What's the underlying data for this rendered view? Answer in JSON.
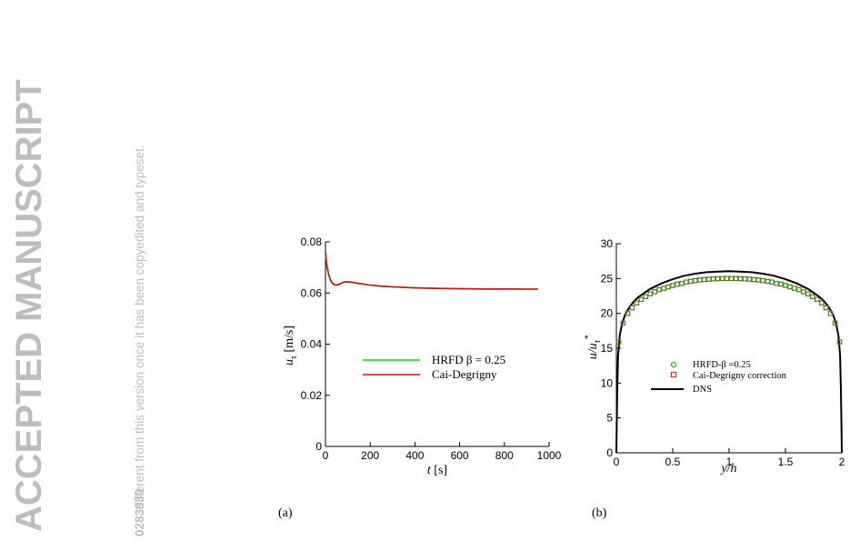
{
  "watermark": {
    "main": "ACCEPTED MANUSCRIPT",
    "line1": "different from this version once it has been copyedited and typeset.",
    "line2": "0283930"
  },
  "chart_data": [
    {
      "type": "line",
      "panel_label": "(a)",
      "xlabel": "t [s]",
      "ylabel": "u_τ [m/s]",
      "ylabel_main": "u",
      "ylabel_sub": "τ",
      "ylabel_unit": "[m/s]",
      "xlabel_var": "t",
      "xlabel_unit": "[s]",
      "xlim": [
        0,
        1000
      ],
      "ylim": [
        0,
        0.08
      ],
      "xticks": [
        0,
        200,
        400,
        600,
        800,
        1000
      ],
      "yticks": [
        0,
        0.02,
        0.04,
        0.06,
        0.08
      ],
      "xtick_labels": [
        "0",
        "200",
        "400",
        "600",
        "800",
        "1000"
      ],
      "ytick_labels": [
        "0",
        "0.02",
        "0.04",
        "0.06",
        "0.08"
      ],
      "legend_position": "center",
      "series": [
        {
          "name": "HRFD β = 0.25",
          "color": "#00dd00",
          "x": [
            0,
            5,
            10,
            20,
            30,
            40,
            50,
            60,
            70,
            80,
            90,
            100,
            120,
            150,
            200,
            250,
            300,
            400,
            500,
            600,
            700,
            800,
            900,
            950
          ],
          "y": [
            0.0755,
            0.0715,
            0.0685,
            0.0655,
            0.0638,
            0.0632,
            0.0631,
            0.0633,
            0.0637,
            0.0641,
            0.0643,
            0.0643,
            0.0641,
            0.0637,
            0.0631,
            0.0627,
            0.0624,
            0.062,
            0.0618,
            0.0617,
            0.0616,
            0.0616,
            0.0615,
            0.0615
          ]
        },
        {
          "name": "Cai-Degrigny",
          "color": "#cc1111",
          "x": [
            0,
            5,
            10,
            20,
            30,
            40,
            50,
            60,
            70,
            80,
            90,
            100,
            120,
            150,
            200,
            250,
            300,
            400,
            500,
            600,
            700,
            800,
            900,
            950
          ],
          "y": [
            0.076,
            0.0718,
            0.0688,
            0.0657,
            0.0639,
            0.0633,
            0.0632,
            0.0634,
            0.0638,
            0.0642,
            0.0644,
            0.0644,
            0.0642,
            0.0637,
            0.0631,
            0.0627,
            0.0624,
            0.062,
            0.0618,
            0.0617,
            0.0616,
            0.0616,
            0.0615,
            0.0615
          ]
        }
      ]
    },
    {
      "type": "line",
      "panel_label": "(b)",
      "xlabel": "y/h",
      "ylabel": "u/u_τ^*",
      "ylabel_main": "u/u",
      "ylabel_sub": "τ",
      "ylabel_sup": "*",
      "xlim": [
        0,
        2
      ],
      "ylim": [
        0,
        30
      ],
      "xticks": [
        0,
        0.5,
        1,
        1.5,
        2
      ],
      "yticks": [
        0,
        5,
        10,
        15,
        20,
        25,
        30
      ],
      "xtick_labels": [
        "0",
        "0.5",
        "1",
        "1.5",
        "2"
      ],
      "ytick_labels": [
        "0",
        "5",
        "10",
        "15",
        "20",
        "25",
        "30"
      ],
      "legend_position": "center",
      "series": [
        {
          "name": "HRFD-β =0.25",
          "marker": "circle",
          "color": "#22aa22",
          "x": [
            0.02,
            0.06,
            0.1,
            0.14,
            0.18,
            0.22,
            0.26,
            0.3,
            0.34,
            0.38,
            0.42,
            0.46,
            0.5,
            0.54,
            0.58,
            0.62,
            0.66,
            0.7,
            0.74,
            0.78,
            0.82,
            0.86,
            0.9,
            0.94,
            0.98,
            1.02,
            1.06,
            1.1,
            1.14,
            1.18,
            1.22,
            1.26,
            1.3,
            1.34,
            1.38,
            1.42,
            1.46,
            1.5,
            1.54,
            1.58,
            1.62,
            1.66,
            1.7,
            1.74,
            1.78,
            1.82,
            1.86,
            1.9,
            1.94,
            1.98
          ],
          "y": [
            15.9,
            18.6,
            20.0,
            20.8,
            21.5,
            22.0,
            22.4,
            22.8,
            23.1,
            23.4,
            23.6,
            23.8,
            24.0,
            24.2,
            24.3,
            24.5,
            24.6,
            24.7,
            24.8,
            24.85,
            24.9,
            24.95,
            24.98,
            25.0,
            25.0,
            25.0,
            25.0,
            24.98,
            24.95,
            24.9,
            24.85,
            24.8,
            24.7,
            24.6,
            24.5,
            24.3,
            24.2,
            24.0,
            23.8,
            23.6,
            23.4,
            23.1,
            22.8,
            22.4,
            22.0,
            21.5,
            20.8,
            20.0,
            18.6,
            15.9
          ]
        },
        {
          "name": "Cai-Degrigny correction",
          "marker": "square",
          "color": "#cc2222",
          "x": [
            0.02,
            0.06,
            0.1,
            0.14,
            0.18,
            0.22,
            0.26,
            0.3,
            0.34,
            0.38,
            0.42,
            0.46,
            0.5,
            0.54,
            0.58,
            0.62,
            0.66,
            0.7,
            0.74,
            0.78,
            0.82,
            0.86,
            0.9,
            0.94,
            0.98,
            1.02,
            1.06,
            1.1,
            1.14,
            1.18,
            1.22,
            1.26,
            1.3,
            1.34,
            1.38,
            1.42,
            1.46,
            1.5,
            1.54,
            1.58,
            1.62,
            1.66,
            1.7,
            1.74,
            1.78,
            1.82,
            1.86,
            1.9,
            1.94,
            1.98
          ],
          "y": [
            15.9,
            18.6,
            20.0,
            20.8,
            21.5,
            22.0,
            22.4,
            22.8,
            23.1,
            23.4,
            23.6,
            23.8,
            24.0,
            24.2,
            24.3,
            24.5,
            24.6,
            24.7,
            24.8,
            24.85,
            24.9,
            24.95,
            24.98,
            25.0,
            25.0,
            25.0,
            25.0,
            24.98,
            24.95,
            24.9,
            24.85,
            24.8,
            24.7,
            24.6,
            24.5,
            24.3,
            24.2,
            24.0,
            23.8,
            23.6,
            23.4,
            23.1,
            22.8,
            22.4,
            22.0,
            21.5,
            20.8,
            20.0,
            18.6,
            15.9
          ]
        },
        {
          "name": "DNS",
          "marker": "none",
          "color": "#000000",
          "x": [
            0,
            0.003,
            0.008,
            0.015,
            0.03,
            0.05,
            0.08,
            0.12,
            0.16,
            0.2,
            0.3,
            0.4,
            0.5,
            0.6,
            0.7,
            0.8,
            0.9,
            1.0,
            1.1,
            1.2,
            1.3,
            1.4,
            1.5,
            1.6,
            1.7,
            1.8,
            1.84,
            1.88,
            1.92,
            1.95,
            1.97,
            1.985,
            1.992,
            1.997,
            2.0
          ],
          "y": [
            0,
            4,
            9,
            14,
            16.8,
            18.5,
            19.9,
            21.0,
            21.8,
            22.4,
            23.5,
            24.3,
            24.9,
            25.4,
            25.7,
            25.9,
            26.0,
            26.05,
            26.0,
            25.9,
            25.7,
            25.4,
            24.9,
            24.3,
            23.5,
            22.4,
            21.8,
            21.0,
            19.9,
            18.5,
            16.8,
            14,
            9,
            4,
            0
          ]
        }
      ]
    }
  ]
}
